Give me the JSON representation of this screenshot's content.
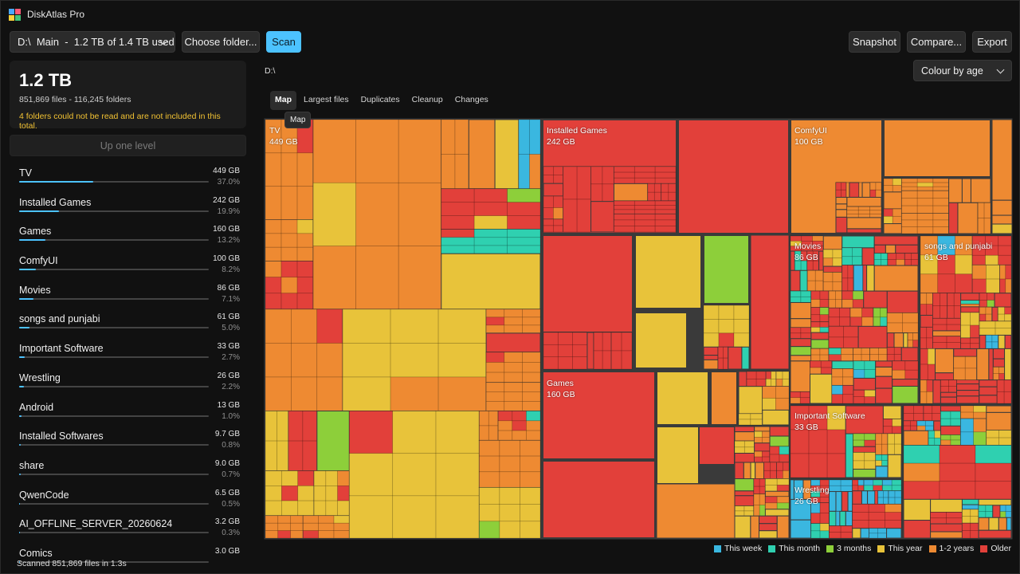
{
  "app": {
    "title": "DiskAtlas Pro"
  },
  "toolbar": {
    "drive_select": "D:\\  Main  -  1.2 TB of 1.4 TB used",
    "choose_folder": "Choose folder...",
    "scan": "Scan",
    "snapshot": "Snapshot",
    "compare": "Compare...",
    "export": "Export"
  },
  "summary": {
    "total": "1.2 TB",
    "counts": "851,869 files  -  116,245 folders",
    "warning": "4 folders could not be read and are not included in this total."
  },
  "up_one_level": "Up one level",
  "folders": [
    {
      "name": "TV",
      "size": "449 GB",
      "pct": "37.0%",
      "share": 0.37
    },
    {
      "name": "Installed Games",
      "size": "242 GB",
      "pct": "19.9%",
      "share": 0.199
    },
    {
      "name": "Games",
      "size": "160 GB",
      "pct": "13.2%",
      "share": 0.132
    },
    {
      "name": "ComfyUI",
      "size": "100 GB",
      "pct": "8.2%",
      "share": 0.082
    },
    {
      "name": "Movies",
      "size": "86 GB",
      "pct": "7.1%",
      "share": 0.071
    },
    {
      "name": "songs and punjabi",
      "size": "61 GB",
      "pct": "5.0%",
      "share": 0.05
    },
    {
      "name": "Important Software",
      "size": "33 GB",
      "pct": "2.7%",
      "share": 0.027
    },
    {
      "name": "Wrestling",
      "size": "26 GB",
      "pct": "2.2%",
      "share": 0.022
    },
    {
      "name": "Android",
      "size": "13 GB",
      "pct": "1.0%",
      "share": 0.01
    },
    {
      "name": "Installed Softwares",
      "size": "9.7 GB",
      "pct": "0.8%",
      "share": 0.008
    },
    {
      "name": "share",
      "size": "9.0 GB",
      "pct": "0.7%",
      "share": 0.007
    },
    {
      "name": "QwenCode",
      "size": "6.5 GB",
      "pct": "0.5%",
      "share": 0.005
    },
    {
      "name": "AI_OFFLINE_SERVER_20260624",
      "size": "3.2 GB",
      "pct": "0.3%",
      "share": 0.003
    },
    {
      "name": "Comics",
      "size": "3.0 GB",
      "pct": "",
      "share": 0.0025
    }
  ],
  "status": "Scanned 851,869 files in 1.3s",
  "path": "D:\\",
  "colour_mode": "Colour by age",
  "tabs": [
    "Map",
    "Largest files",
    "Duplicates",
    "Cleanup",
    "Changes"
  ],
  "tooltip": "Map",
  "treemap_labels": [
    {
      "name": "TV",
      "size": "449 GB"
    },
    {
      "name": "Installed Games",
      "size": "242 GB"
    },
    {
      "name": "ComfyUI",
      "size": "100 GB"
    },
    {
      "name": "Movies",
      "size": "86 GB"
    },
    {
      "name": "songs and punjabi",
      "size": "61 GB"
    },
    {
      "name": "Games",
      "size": "160 GB"
    },
    {
      "name": "Important Software",
      "size": "33 GB"
    },
    {
      "name": "Wrestling",
      "size": "26 GB"
    }
  ],
  "legend": [
    {
      "label": "This week",
      "color": "#3ab7e0"
    },
    {
      "label": "This month",
      "color": "#2fd0b0"
    },
    {
      "label": "3 months",
      "color": "#8dcf3a"
    },
    {
      "label": "This year",
      "color": "#e8c33a"
    },
    {
      "label": "1-2 years",
      "color": "#ee8a32"
    },
    {
      "label": "Older",
      "color": "#e2403a"
    }
  ],
  "colors": {
    "accent": "#4cc2ff",
    "warning": "#f2c233"
  }
}
